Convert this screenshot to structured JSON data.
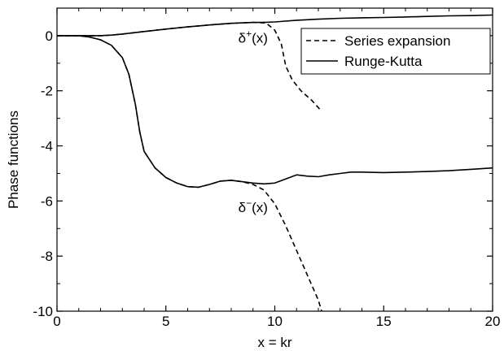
{
  "chart_data": {
    "type": "line",
    "xlabel": "x = kr",
    "ylabel": "Phase functions",
    "xlim": [
      0,
      20
    ],
    "ylim": [
      -10,
      1
    ],
    "xticks": [
      0,
      5,
      10,
      15,
      20
    ],
    "yticks": [
      0,
      -2,
      -4,
      -6,
      -8,
      -10
    ],
    "xtick_labels": [
      "0",
      "5",
      "10",
      "15",
      "20"
    ],
    "ytick_labels": [
      "0",
      "-2",
      "-4",
      "-6",
      "-8",
      "-10"
    ],
    "minor_x_step": 1,
    "minor_y_step": 1,
    "grid": false,
    "legend_position": "top-right",
    "legend": [
      {
        "label": "Series expansion",
        "style": "dashed"
      },
      {
        "label": "Runge-Kutta",
        "style": "solid"
      }
    ],
    "annotations": [
      {
        "base": "δ",
        "sup": "+",
        "rest": "(x)",
        "x": 9.0,
        "y": -0.25
      },
      {
        "base": "δ",
        "sup": "−",
        "rest": "(x)",
        "x": 9.0,
        "y": -6.4
      }
    ],
    "series": [
      {
        "style": "solid",
        "values": [
          [
            0,
            0
          ],
          [
            1,
            0
          ],
          [
            2,
            0
          ],
          [
            2.5,
            0.02
          ],
          [
            3,
            0.06
          ],
          [
            4,
            0.15
          ],
          [
            5,
            0.24
          ],
          [
            6,
            0.32
          ],
          [
            7,
            0.39
          ],
          [
            8,
            0.45
          ],
          [
            9,
            0.48
          ],
          [
            9.5,
            0.48
          ],
          [
            10,
            0.5
          ],
          [
            11,
            0.56
          ],
          [
            12,
            0.6
          ],
          [
            13,
            0.63
          ],
          [
            14,
            0.65
          ],
          [
            15,
            0.66
          ],
          [
            16,
            0.68
          ],
          [
            17,
            0.7
          ],
          [
            18,
            0.72
          ],
          [
            19,
            0.73
          ],
          [
            20,
            0.75
          ]
        ]
      },
      {
        "style": "dashed",
        "values": [
          [
            0,
            0
          ],
          [
            1,
            0
          ],
          [
            2,
            0
          ],
          [
            2.5,
            0.02
          ],
          [
            3,
            0.06
          ],
          [
            4,
            0.15
          ],
          [
            5,
            0.24
          ],
          [
            6,
            0.32
          ],
          [
            7,
            0.39
          ],
          [
            8,
            0.45
          ],
          [
            9,
            0.48
          ],
          [
            9.6,
            0.46
          ],
          [
            10,
            0.2
          ],
          [
            10.3,
            -0.3
          ],
          [
            10.5,
            -1.1
          ],
          [
            10.8,
            -1.6
          ],
          [
            11.2,
            -2.0
          ],
          [
            11.7,
            -2.35
          ],
          [
            12.1,
            -2.7
          ]
        ]
      },
      {
        "style": "solid",
        "values": [
          [
            0,
            0
          ],
          [
            1,
            0
          ],
          [
            1.5,
            -0.05
          ],
          [
            2,
            -0.15
          ],
          [
            2.5,
            -0.35
          ],
          [
            3,
            -0.8
          ],
          [
            3.3,
            -1.4
          ],
          [
            3.6,
            -2.5
          ],
          [
            3.8,
            -3.5
          ],
          [
            4,
            -4.2
          ],
          [
            4.5,
            -4.8
          ],
          [
            5,
            -5.15
          ],
          [
            5.5,
            -5.35
          ],
          [
            6,
            -5.48
          ],
          [
            6.5,
            -5.5
          ],
          [
            7,
            -5.4
          ],
          [
            7.5,
            -5.28
          ],
          [
            8,
            -5.25
          ],
          [
            8.5,
            -5.3
          ],
          [
            9,
            -5.35
          ],
          [
            9.5,
            -5.38
          ],
          [
            10,
            -5.35
          ],
          [
            10.5,
            -5.2
          ],
          [
            11,
            -5.05
          ],
          [
            11.5,
            -5.1
          ],
          [
            12,
            -5.12
          ],
          [
            12.5,
            -5.05
          ],
          [
            13,
            -5.0
          ],
          [
            13.5,
            -4.95
          ],
          [
            14,
            -4.95
          ],
          [
            15,
            -4.97
          ],
          [
            16,
            -4.95
          ],
          [
            17,
            -4.93
          ],
          [
            18,
            -4.9
          ],
          [
            19,
            -4.85
          ],
          [
            20,
            -4.8
          ]
        ]
      },
      {
        "style": "dashed",
        "values": [
          [
            0,
            0
          ],
          [
            1,
            0
          ],
          [
            1.5,
            -0.05
          ],
          [
            2,
            -0.15
          ],
          [
            2.5,
            -0.35
          ],
          [
            3,
            -0.8
          ],
          [
            3.3,
            -1.4
          ],
          [
            3.6,
            -2.5
          ],
          [
            3.8,
            -3.5
          ],
          [
            4,
            -4.2
          ],
          [
            4.5,
            -4.8
          ],
          [
            5,
            -5.15
          ],
          [
            5.5,
            -5.35
          ],
          [
            6,
            -5.48
          ],
          [
            6.5,
            -5.5
          ],
          [
            7,
            -5.4
          ],
          [
            7.5,
            -5.28
          ],
          [
            8,
            -5.25
          ],
          [
            8.5,
            -5.3
          ],
          [
            9,
            -5.4
          ],
          [
            9.5,
            -5.6
          ],
          [
            10,
            -6.1
          ],
          [
            10.5,
            -6.9
          ],
          [
            11,
            -7.8
          ],
          [
            11.5,
            -8.7
          ],
          [
            12,
            -9.6
          ],
          [
            12.15,
            -10
          ]
        ]
      }
    ]
  }
}
